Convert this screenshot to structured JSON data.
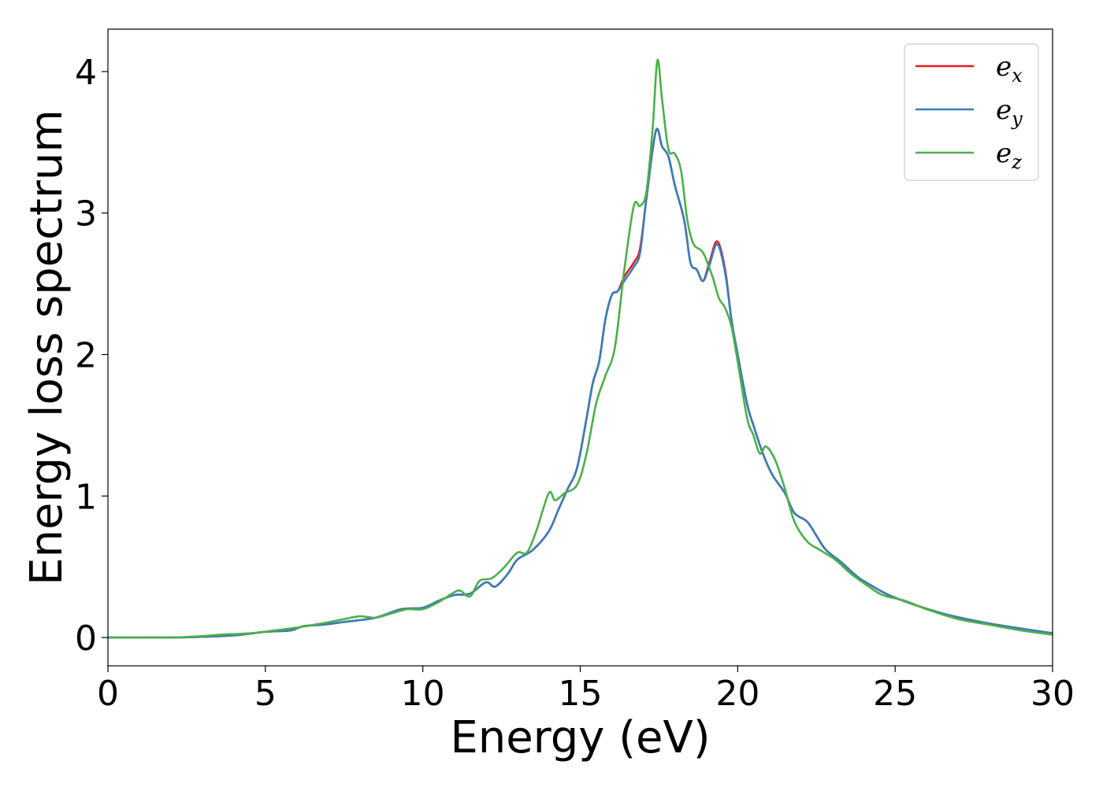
{
  "chart_data": {
    "type": "line",
    "xlabel": "Energy (eV)",
    "ylabel": "Energy loss spectrum",
    "xlim": [
      0,
      30
    ],
    "ylim": [
      -0.2,
      4.3
    ],
    "xticks": [
      "0",
      "5",
      "10",
      "15",
      "20",
      "25",
      "30"
    ],
    "yticks": [
      "0",
      "1",
      "2",
      "3",
      "4"
    ],
    "grid": false,
    "legend_position": "top-right",
    "series": [
      {
        "name": "e_x",
        "legend_base": "e",
        "legend_sub": "x",
        "color": "#e41a1c",
        "points": [
          [
            0,
            0
          ],
          [
            2,
            0
          ],
          [
            3,
            0.005
          ],
          [
            4,
            0.015
          ],
          [
            5,
            0.04
          ],
          [
            5.8,
            0.05
          ],
          [
            6.2,
            0.08
          ],
          [
            6.8,
            0.09
          ],
          [
            7.5,
            0.11
          ],
          [
            8.5,
            0.14
          ],
          [
            9.3,
            0.2
          ],
          [
            10,
            0.21
          ],
          [
            10.5,
            0.26
          ],
          [
            11,
            0.3
          ],
          [
            11.5,
            0.31
          ],
          [
            12,
            0.39
          ],
          [
            12.3,
            0.36
          ],
          [
            12.7,
            0.45
          ],
          [
            13,
            0.55
          ],
          [
            13.5,
            0.62
          ],
          [
            14,
            0.75
          ],
          [
            14.3,
            0.9
          ],
          [
            14.6,
            1.05
          ],
          [
            14.9,
            1.2
          ],
          [
            15.2,
            1.55
          ],
          [
            15.4,
            1.8
          ],
          [
            15.6,
            1.95
          ],
          [
            15.8,
            2.25
          ],
          [
            16,
            2.42
          ],
          [
            16.2,
            2.45
          ],
          [
            16.4,
            2.55
          ],
          [
            16.7,
            2.65
          ],
          [
            16.9,
            2.75
          ],
          [
            17.1,
            3.1
          ],
          [
            17.4,
            3.58
          ],
          [
            17.6,
            3.47
          ],
          [
            17.8,
            3.4
          ],
          [
            18,
            3.2
          ],
          [
            18.3,
            2.95
          ],
          [
            18.5,
            2.65
          ],
          [
            18.7,
            2.6
          ],
          [
            18.9,
            2.52
          ],
          [
            19.1,
            2.65
          ],
          [
            19.35,
            2.8
          ],
          [
            19.6,
            2.6
          ],
          [
            19.8,
            2.25
          ],
          [
            20,
            2.0
          ],
          [
            20.3,
            1.65
          ],
          [
            20.5,
            1.5
          ],
          [
            20.8,
            1.3
          ],
          [
            21.1,
            1.15
          ],
          [
            21.5,
            1.02
          ],
          [
            21.8,
            0.88
          ],
          [
            22.2,
            0.82
          ],
          [
            22.5,
            0.72
          ],
          [
            22.8,
            0.62
          ],
          [
            23.3,
            0.53
          ],
          [
            23.8,
            0.43
          ],
          [
            24.3,
            0.36
          ],
          [
            24.8,
            0.3
          ],
          [
            25.5,
            0.24
          ],
          [
            26.5,
            0.17
          ],
          [
            27.5,
            0.12
          ],
          [
            28.5,
            0.08
          ],
          [
            30,
            0.03
          ]
        ]
      },
      {
        "name": "e_y",
        "legend_base": "e",
        "legend_sub": "y",
        "color": "#377eb8",
        "points": [
          [
            0,
            0
          ],
          [
            2,
            0
          ],
          [
            3,
            0.005
          ],
          [
            4,
            0.015
          ],
          [
            5,
            0.04
          ],
          [
            5.8,
            0.05
          ],
          [
            6.2,
            0.08
          ],
          [
            6.8,
            0.09
          ],
          [
            7.5,
            0.11
          ],
          [
            8.5,
            0.14
          ],
          [
            9.3,
            0.2
          ],
          [
            10,
            0.21
          ],
          [
            10.5,
            0.26
          ],
          [
            11,
            0.3
          ],
          [
            11.5,
            0.31
          ],
          [
            12,
            0.39
          ],
          [
            12.3,
            0.36
          ],
          [
            12.7,
            0.45
          ],
          [
            13,
            0.55
          ],
          [
            13.5,
            0.62
          ],
          [
            14,
            0.75
          ],
          [
            14.3,
            0.9
          ],
          [
            14.6,
            1.05
          ],
          [
            14.9,
            1.2
          ],
          [
            15.2,
            1.55
          ],
          [
            15.4,
            1.8
          ],
          [
            15.6,
            1.95
          ],
          [
            15.8,
            2.25
          ],
          [
            16,
            2.42
          ],
          [
            16.2,
            2.45
          ],
          [
            16.4,
            2.52
          ],
          [
            16.7,
            2.62
          ],
          [
            16.9,
            2.72
          ],
          [
            17.1,
            3.1
          ],
          [
            17.4,
            3.58
          ],
          [
            17.6,
            3.47
          ],
          [
            17.8,
            3.4
          ],
          [
            18,
            3.2
          ],
          [
            18.3,
            2.95
          ],
          [
            18.5,
            2.65
          ],
          [
            18.7,
            2.6
          ],
          [
            18.9,
            2.52
          ],
          [
            19.1,
            2.63
          ],
          [
            19.35,
            2.78
          ],
          [
            19.6,
            2.58
          ],
          [
            19.8,
            2.25
          ],
          [
            20,
            2.0
          ],
          [
            20.3,
            1.65
          ],
          [
            20.5,
            1.5
          ],
          [
            20.8,
            1.3
          ],
          [
            21.1,
            1.15
          ],
          [
            21.5,
            1.02
          ],
          [
            21.8,
            0.88
          ],
          [
            22.2,
            0.82
          ],
          [
            22.5,
            0.72
          ],
          [
            22.8,
            0.62
          ],
          [
            23.3,
            0.53
          ],
          [
            23.8,
            0.43
          ],
          [
            24.3,
            0.36
          ],
          [
            24.8,
            0.3
          ],
          [
            25.5,
            0.24
          ],
          [
            26.5,
            0.17
          ],
          [
            27.5,
            0.12
          ],
          [
            28.5,
            0.08
          ],
          [
            30,
            0.03
          ]
        ]
      },
      {
        "name": "e_z",
        "legend_base": "e",
        "legend_sub": "z",
        "color": "#4daf4a",
        "points": [
          [
            0,
            0
          ],
          [
            2,
            0
          ],
          [
            3,
            0.01
          ],
          [
            3.6,
            0.02
          ],
          [
            4.5,
            0.03
          ],
          [
            5.3,
            0.05
          ],
          [
            6,
            0.07
          ],
          [
            6.8,
            0.1
          ],
          [
            7.5,
            0.13
          ],
          [
            8,
            0.15
          ],
          [
            8.5,
            0.14
          ],
          [
            9,
            0.17
          ],
          [
            9.5,
            0.2
          ],
          [
            10,
            0.2
          ],
          [
            10.5,
            0.25
          ],
          [
            11,
            0.32
          ],
          [
            11.2,
            0.33
          ],
          [
            11.5,
            0.29
          ],
          [
            11.8,
            0.4
          ],
          [
            12.2,
            0.42
          ],
          [
            12.6,
            0.5
          ],
          [
            13,
            0.6
          ],
          [
            13.3,
            0.6
          ],
          [
            13.6,
            0.75
          ],
          [
            14,
            1.02
          ],
          [
            14.2,
            0.97
          ],
          [
            14.5,
            1.02
          ],
          [
            14.9,
            1.08
          ],
          [
            15.2,
            1.3
          ],
          [
            15.5,
            1.65
          ],
          [
            15.8,
            1.85
          ],
          [
            16.1,
            2.05
          ],
          [
            16.4,
            2.6
          ],
          [
            16.7,
            3.05
          ],
          [
            16.9,
            3.05
          ],
          [
            17.1,
            3.15
          ],
          [
            17.3,
            3.6
          ],
          [
            17.45,
            4.08
          ],
          [
            17.6,
            3.8
          ],
          [
            17.8,
            3.45
          ],
          [
            18,
            3.42
          ],
          [
            18.2,
            3.3
          ],
          [
            18.4,
            2.95
          ],
          [
            18.6,
            2.78
          ],
          [
            18.9,
            2.72
          ],
          [
            19.2,
            2.55
          ],
          [
            19.4,
            2.4
          ],
          [
            19.6,
            2.33
          ],
          [
            19.8,
            2.2
          ],
          [
            20,
            1.95
          ],
          [
            20.3,
            1.55
          ],
          [
            20.5,
            1.43
          ],
          [
            20.7,
            1.3
          ],
          [
            20.9,
            1.35
          ],
          [
            21.2,
            1.25
          ],
          [
            21.5,
            1.05
          ],
          [
            21.8,
            0.82
          ],
          [
            22.2,
            0.68
          ],
          [
            22.6,
            0.62
          ],
          [
            23.1,
            0.55
          ],
          [
            23.6,
            0.45
          ],
          [
            24.1,
            0.37
          ],
          [
            24.6,
            0.3
          ],
          [
            25.3,
            0.26
          ],
          [
            26,
            0.2
          ],
          [
            27,
            0.13
          ],
          [
            28,
            0.09
          ],
          [
            29,
            0.05
          ],
          [
            30,
            0.02
          ]
        ]
      }
    ]
  }
}
